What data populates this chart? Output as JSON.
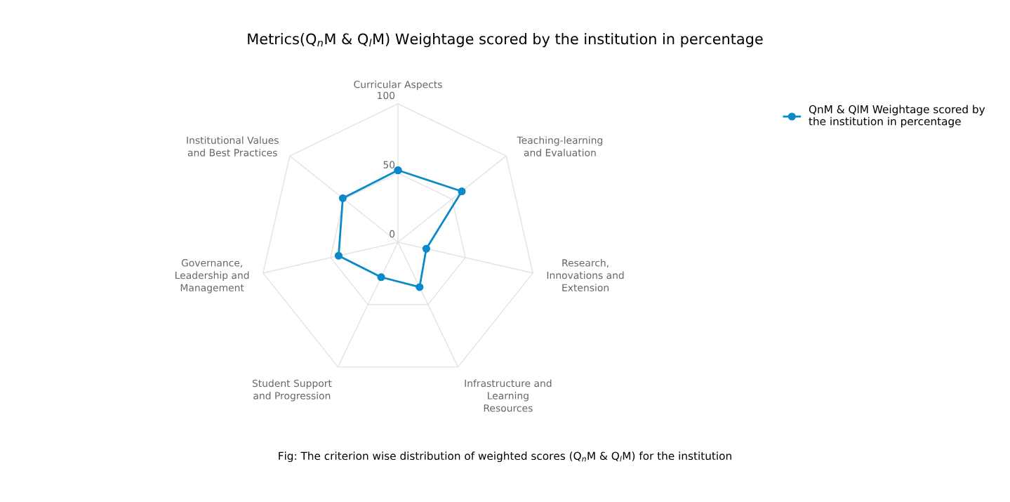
{
  "chart_data": {
    "type": "radar",
    "title": "Metrics(Q$_{n}$M & Q$_{l}$M) Weightage scored by the institution in percentage",
    "categories": [
      "Curricular Aspects",
      "Teaching-learning\nand Evaluation",
      "Research,\nInnovations and\nExtension",
      "Infrastructure and\nLearning\nResources",
      "Student Support\nand Progression",
      "Governance,\nLeadership and\nManagement",
      "Institutional Values\nand Best Practices"
    ],
    "series": [
      {
        "name": "QnM & QlM Weightage scored by\nthe institution in percentage",
        "color": "#0b8ac9",
        "values": [
          52,
          59,
          21,
          36,
          28,
          44,
          51
        ]
      }
    ],
    "ylim": [
      0,
      100
    ],
    "yticks": [
      0,
      50,
      100
    ],
    "grid": true,
    "marker": "circle",
    "line_style": "solid",
    "legend": "top right",
    "annotations": [
      "Fig: The criterion wise distribution of weighted scores (Q$_{n}$M & Q$_{l}$M) for the institution"
    ]
  }
}
